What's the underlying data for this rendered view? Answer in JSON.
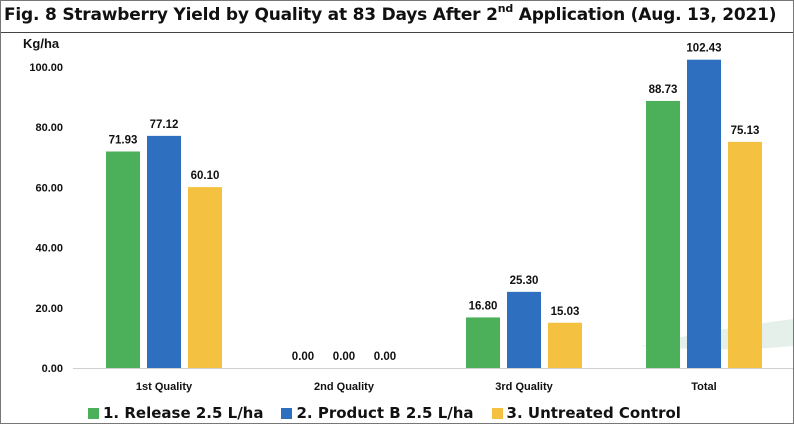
{
  "title": {
    "prefix": "Fig. 8  Strawberry Yield by Quality at 83 Days After 2",
    "superscript": "nd",
    "suffix": " Application (Aug. 13, 2021)"
  },
  "chart_data": {
    "type": "bar",
    "title": "Fig. 8  Strawberry Yield by Quality at 83 Days After 2nd Application (Aug. 13, 2021)",
    "xlabel": "",
    "ylabel": "Kg/ha",
    "ylim": [
      0,
      100
    ],
    "yticks": [
      "0.00",
      "20.00",
      "40.00",
      "60.00",
      "80.00",
      "100.00"
    ],
    "categories": [
      "1st Quality",
      "2nd Quality",
      "3rd Quality",
      "Total"
    ],
    "series": [
      {
        "name": "1. Release 2.5 L/ha",
        "color": "#4caf5a",
        "values": [
          71.93,
          0.0,
          16.8,
          88.73
        ],
        "labels": [
          "71.93",
          "0.00",
          "16.80",
          "88.73"
        ]
      },
      {
        "name": "2. Product B 2.5 L/ha",
        "color": "#2e6fc0",
        "values": [
          77.12,
          0.0,
          25.3,
          102.43
        ],
        "labels": [
          "77.12",
          "0.00",
          "25.30",
          "102.43"
        ]
      },
      {
        "name": "3. Untreated Control",
        "color": "#f5c140",
        "values": [
          60.1,
          0.0,
          15.03,
          75.13
        ],
        "labels": [
          "60.10",
          "0.00",
          "15.03",
          "75.13"
        ]
      }
    ],
    "grid": false,
    "legend_position": "bottom"
  }
}
